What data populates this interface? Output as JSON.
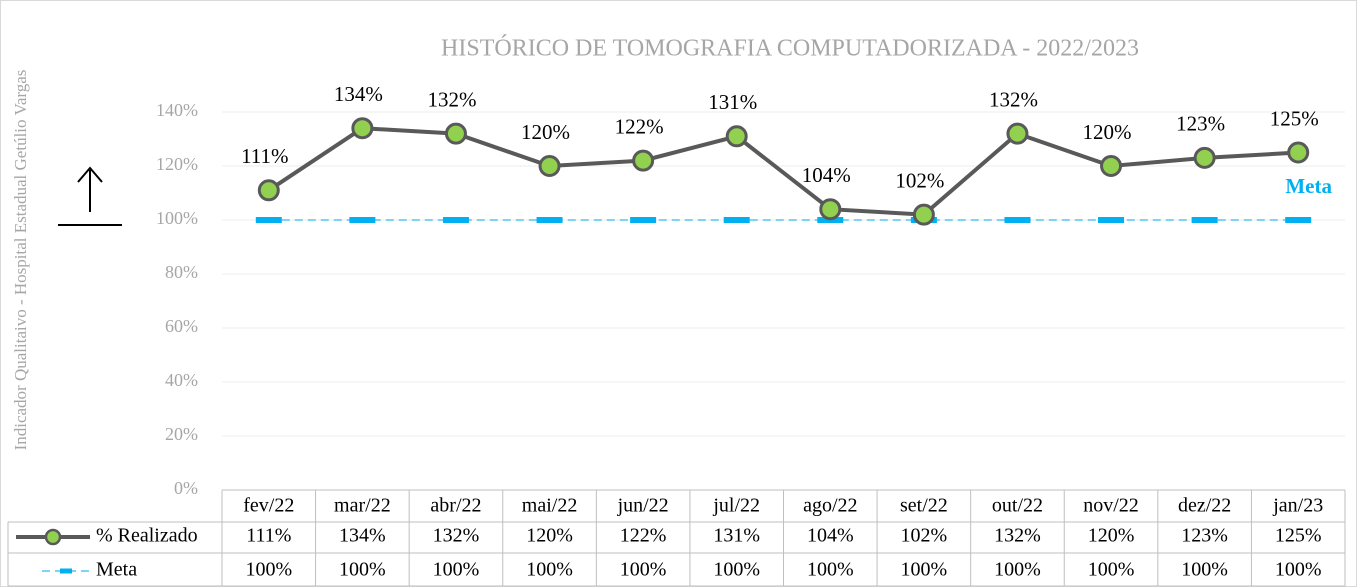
{
  "chart_data": {
    "type": "line",
    "title": "HISTÓRICO DE TOMOGRAFIA COMPUTADORIZADA  - 2022/2023",
    "y_label": "Indicador Qualitaivo - Hospital Estadual Getúlio Vargas",
    "annotation": "Meta",
    "categories": [
      "fev/22",
      "mar/22",
      "abr/22",
      "mai/22",
      "jun/22",
      "jul/22",
      "ago/22",
      "set/22",
      "out/22",
      "nov/22",
      "dez/22",
      "jan/23"
    ],
    "series": [
      {
        "name": "% Realizado",
        "color": "#595959",
        "marker_color": "#92d050",
        "values": [
          111,
          134,
          132,
          120,
          122,
          131,
          104,
          102,
          132,
          120,
          123,
          125
        ],
        "value_labels": [
          "111%",
          "134%",
          "132%",
          "120%",
          "122%",
          "131%",
          "104%",
          "102%",
          "132%",
          "120%",
          "123%",
          "125%"
        ]
      },
      {
        "name": "Meta",
        "color": "#00b0f0",
        "values": [
          100,
          100,
          100,
          100,
          100,
          100,
          100,
          100,
          100,
          100,
          100,
          100
        ],
        "value_labels": [
          "100%",
          "100%",
          "100%",
          "100%",
          "100%",
          "100%",
          "100%",
          "100%",
          "100%",
          "100%",
          "100%",
          "100%"
        ]
      }
    ],
    "ylim": [
      0,
      150
    ],
    "yticks": [
      {
        "value": 0,
        "label": "0%"
      },
      {
        "value": 20,
        "label": "20%"
      },
      {
        "value": 40,
        "label": "40%"
      },
      {
        "value": 60,
        "label": "60%"
      },
      {
        "value": 80,
        "label": "80%"
      },
      {
        "value": 100,
        "label": "100%"
      },
      {
        "value": 120,
        "label": "120%"
      },
      {
        "value": 140,
        "label": "140%"
      }
    ],
    "grid": true
  }
}
